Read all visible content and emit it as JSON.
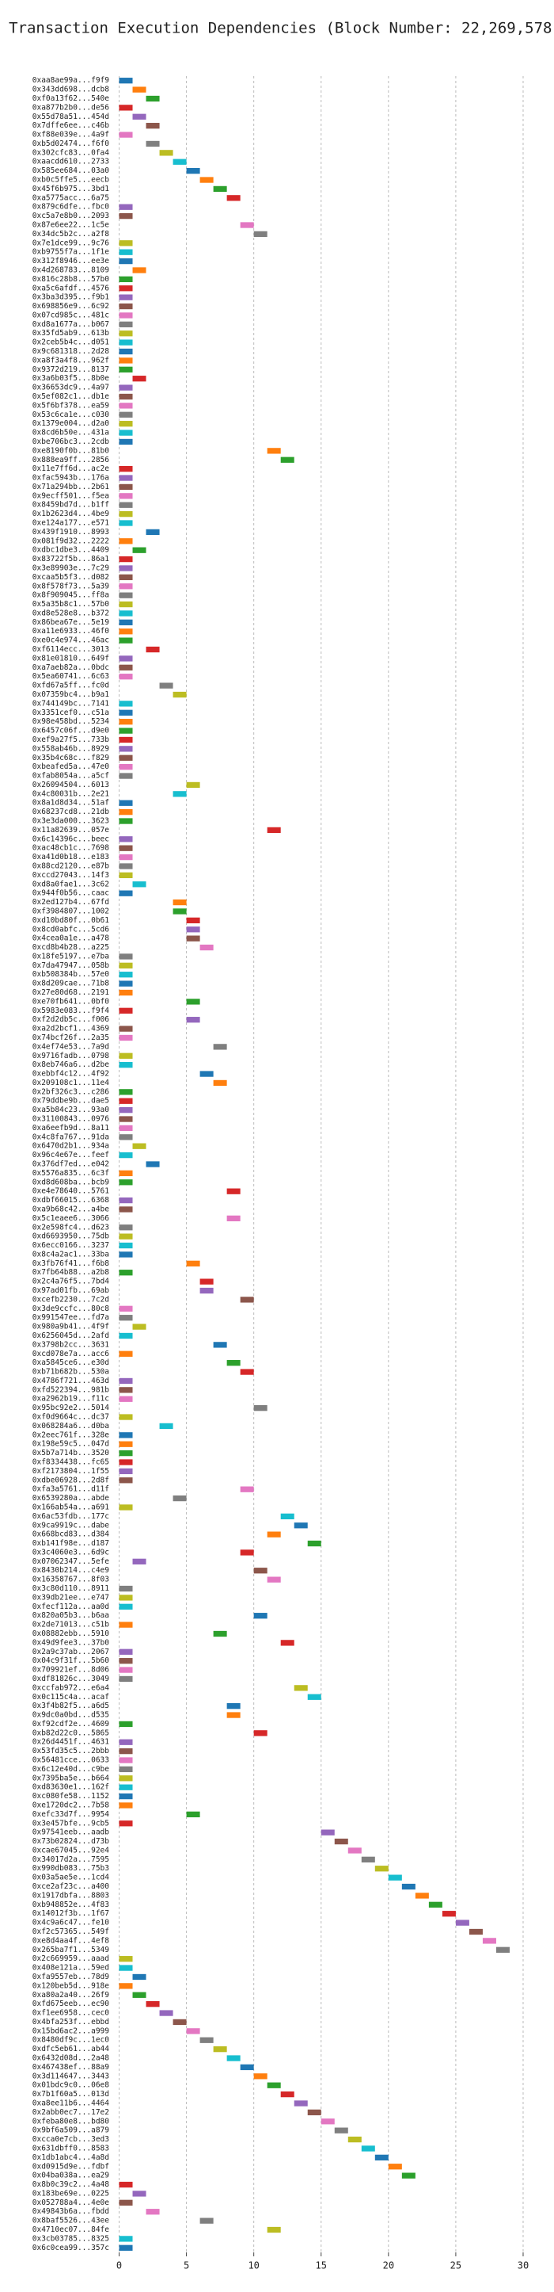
{
  "chart_data": {
    "type": "timeline",
    "title": "Transaction Execution Dependencies (Block Number: 22,269,578)",
    "categories": [
      "0xaa8ae99a...f9f9",
      "0x343dd698...dcb8",
      "0xf0a13f62...540e",
      "0xa877b2b0...de56",
      "0x55d78a51...454d",
      "0x7dffe6ee...c46b",
      "0xf88e039e...4a9f",
      "0xb5d02474...f6f0",
      "0x302cfc83...0fa4",
      "0xaacdd610...2733",
      "0x585ee684...03a0",
      "0xb0c5ffe5...eecb",
      "0x45f6b975...3bd1",
      "0xa5775acc...6a75",
      "0x879c6dfe...fbc0",
      "0xc5a7e8b0...2093",
      "0x87e6ee22...1c5e",
      "0x34dc5b2c...a2f8",
      "0x7e1dce99...9c76",
      "0xb9755f7a...1f1e",
      "0x312f8946...ee3e",
      "0x4d268783...8109",
      "0x816c28b8...57b0",
      "0xa5c6afdf...4576",
      "0x3ba3d395...f9b1",
      "0x698856e9...6c92",
      "0x07cd985c...481c",
      "0xd8a1677a...b067",
      "0x35fd5ab9...613b",
      "0x2ceb5b4c...d051",
      "0x9c681318...2d28",
      "0xa8f3a4f8...962f",
      "0x9372d219...8137",
      "0x3a6b03f5...8b0e",
      "0x36653dc9...4a97",
      "0x5ef082c1...db1e",
      "0x5f6bf378...ea59",
      "0x53c6ca1e...c030",
      "0x1379e004...d2a0",
      "0x8cd6b50e...431a",
      "0xbe706bc3...2cdb",
      "0xe8190f0b...81b0",
      "0x888ea9ff...2856",
      "0x11e7ff6d...ac2e",
      "0xfac5943b...176a",
      "0x71a294bb...2b61",
      "0x9ecff501...f5ea",
      "0x8459bd7d...b1ff",
      "0x1b2623d4...4be9",
      "0xe124a177...e571",
      "0x439f1910...8993",
      "0x081f9d32...2222",
      "0xdbc1dbe3...4409",
      "0x83722f5b...86a1",
      "0x3e89903e...7c29",
      "0xcaa5b5f3...d082",
      "0x8f578f73...5a39",
      "0x8f909045...ff8a",
      "0x5a35b8c1...57b0",
      "0xd8e528e8...b372",
      "0x86bea67e...5e19",
      "0xa11e6933...46f0",
      "0xe0c4e974...46ac",
      "0xf6114ecc...3013",
      "0x81e01810...649f",
      "0xa7aeb82a...0bdc",
      "0x5ea60741...6c63",
      "0xfd67a5ff...fc0d",
      "0x07359bc4...b9a1",
      "0x744149bc...7141",
      "0x3351cef0...c51a",
      "0x98e458bd...5234",
      "0x6457c06f...d9e0",
      "0xef9a27f5...733b",
      "0x558ab46b...8929",
      "0x35b4c68c...f829",
      "0xbeafed5a...47e0",
      "0xfab8054a...a5cf",
      "0x26094504...6013",
      "0x4c80031b...2e21",
      "0x8a1d8d34...51af",
      "0x68237cd8...21db",
      "0x3e3da000...3623",
      "0x11a82639...057e",
      "0x6c14396c...beec",
      "0xac48cb1c...7698",
      "0xa41d0b18...e183",
      "0x88cd2120...e87b",
      "0xccd27043...14f3",
      "0xd8a0fae1...3c62",
      "0x944f0b56...caac",
      "0x2ed127b4...67fd",
      "0xf3984807...1002",
      "0xd10bd80f...0b61",
      "0x8cd0abfc...5cd6",
      "0x4cea0a1e...a478",
      "0xcd8b4b28...a225",
      "0x18fe5197...e7ba",
      "0x7da47947...058b",
      "0xb508384b...57e0",
      "0x8d209cae...71b8",
      "0x27e80d68...2191",
      "0xe70fb641...0bf0",
      "0x5983e083...f9f4",
      "0xf2d2db5c...f006",
      "0xa2d2bcf1...4369",
      "0x74bcf26f...2a35",
      "0x4ef74e53...7a9d",
      "0x9716fadb...0798",
      "0x8eb746a6...d2be",
      "0xebbf4c12...4f92",
      "0x209108c1...11e4",
      "0x2bf326c3...c286",
      "0x79ddbe9b...dae5",
      "0xa5b84c23...93a0",
      "0x31100843...0976",
      "0xa6eefb9d...8a11",
      "0x4c8fa767...91da",
      "0x6470d2b1...934a",
      "0x96c4e67e...feef",
      "0x376df7ed...e042",
      "0x5576a835...6c3f",
      "0xd8d608ba...bcb9",
      "0xe4e78640...5761",
      "0xdbf66015...6368",
      "0xa9b68c42...a4be",
      "0x5c1eaee6...3066",
      "0x2e598fc4...d623",
      "0xd6693950...75db",
      "0x6ecc0166...3237",
      "0x8c4a2ac1...33ba",
      "0x3fb76f41...f6b8",
      "0x7fb64b88...a2b8",
      "0x2c4a76f5...7bd4",
      "0x97ad01fb...69ab",
      "0xcefb2230...7c2d",
      "0x3de9ccfc...80c8",
      "0x991547ee...fd7a",
      "0x980a9b41...4f9f",
      "0x6256045d...2afd",
      "0x3798b2cc...3631",
      "0xcd078e7a...acc6",
      "0xa5845ce6...e30d",
      "0xb71b682b...530a",
      "0x4786f721...463d",
      "0xfd522394...981b",
      "0xa2962b19...f11c",
      "0x95bc92e2...5014",
      "0xf0d9664c...dc37",
      "0x068284a6...d0ba",
      "0x2eec761f...328e",
      "0x198e59c5...047d",
      "0x5b7a714b...3520",
      "0xf8334438...fc65",
      "0xf2173804...1f55",
      "0xdbe06928...2d8f",
      "0xfa3a5761...d11f",
      "0x6539280a...abde",
      "0x166ab54a...a691",
      "0x6ac53fdb...177c",
      "0x9ca9919c...dabe",
      "0x668bcd83...d384",
      "0xb141f98e...d187",
      "0x3c4060e3...6d9c",
      "0x07062347...5efe",
      "0x8430b214...c4e9",
      "0x16358767...8f03",
      "0x3c80d110...8911",
      "0x39db21ee...e747",
      "0xfecf112a...aa0d",
      "0x820a05b3...b6aa",
      "0x2de71013...c51b",
      "0x08882ebb...5910",
      "0x49d9fee3...37b0",
      "0x2a9c37ab...2067",
      "0x04c9f31f...5b60",
      "0x709921ef...8d06",
      "0xdf81826c...3049",
      "0xccfab972...e6a4",
      "0x0c115c4a...acaf",
      "0x3f4b82f5...a6d5",
      "0x9dc0a0bd...d535",
      "0xf92cdf2e...4609",
      "0xb82d22c0...5865",
      "0x26d4451f...4631",
      "0x53fd35c5...2bbb",
      "0x56481cce...0633",
      "0x6c12e40d...c9be",
      "0x7395ba5e...b664",
      "0xd83630e1...162f",
      "0xc080fe58...1152",
      "0xe1720dc2...7b58",
      "0xefc33d7f...9954",
      "0x3e457bfe...9cb5",
      "0x97541eeb...aadb",
      "0x73b02824...d73b",
      "0xcae67045...92e4",
      "0x34017d2a...7595",
      "0x990db083...75b3",
      "0x03a5ae5e...1cd4",
      "0xce2af23c...a400",
      "0x1917dbfa...8803",
      "0xb948852e...4f83",
      "0x14012f3b...1f67",
      "0x4c9a6c47...fe10",
      "0xf2c57365...549f",
      "0xe8d4aa4f...4ef8",
      "0x265ba7f1...5349",
      "0x2c669959...aaad",
      "0x408e121a...59ed",
      "0xfa9557eb...78d9",
      "0x120beb5d...918e",
      "0xa80a2a40...26f9",
      "0xfd675eeb...ec90",
      "0xf1ee6958...cec0",
      "0x4bfa253f...ebbd",
      "0x15bd6ac2...a999",
      "0x8480df9c...1ec0",
      "0xdfc5eb61...ab44",
      "0x6432d08d...2a48",
      "0x467438ef...88a9",
      "0x3d114647...3443",
      "0x01bdc9c0...06e8",
      "0x7b1f60a5...013d",
      "0xa8ee11b6...4464",
      "0x2abb0ec7...17e2",
      "0xfeba80e8...bd80",
      "0x9bf6a509...a879",
      "0xcca0e7cb...3ed3",
      "0x631dbff0...8583",
      "0x1db1abc4...4a8d",
      "0xd0915d9e...fdbf",
      "0x04ba038a...ea29",
      "0x8b0c39c2...4a48",
      "0x183be69e...0225",
      "0x052788a4...4e0e",
      "0x49843b6a...fbdd",
      "0x8baf5526...43ee",
      "0x4710ec07...84fe",
      "0x3cb03785...8325",
      "0x6c0cea99...357c"
    ],
    "values": [
      0,
      1,
      2,
      0,
      1,
      2,
      0,
      2,
      3,
      4,
      5,
      6,
      7,
      8,
      0,
      0,
      9,
      10,
      0,
      0,
      0,
      1,
      0,
      0,
      0,
      0,
      0,
      0,
      0,
      0,
      0,
      0,
      0,
      1,
      0,
      0,
      0,
      0,
      0,
      0,
      0,
      11,
      12,
      0,
      0,
      0,
      0,
      0,
      0,
      0,
      2,
      0,
      1,
      0,
      0,
      0,
      0,
      0,
      0,
      0,
      0,
      0,
      0,
      2,
      0,
      0,
      0,
      3,
      4,
      0,
      0,
      0,
      0,
      0,
      0,
      0,
      0,
      0,
      5,
      4,
      0,
      0,
      0,
      11,
      0,
      0,
      0,
      0,
      0,
      1,
      0,
      4,
      4,
      5,
      5,
      5,
      6,
      0,
      0,
      0,
      0,
      0,
      5,
      0,
      5,
      0,
      0,
      7,
      0,
      0,
      6,
      7,
      0,
      0,
      0,
      0,
      0,
      0,
      1,
      0,
      2,
      0,
      0,
      8,
      0,
      0,
      8,
      0,
      0,
      0,
      0,
      5,
      0,
      6,
      6,
      9,
      0,
      0,
      1,
      0,
      7,
      0,
      8,
      9,
      0,
      0,
      0,
      10,
      0,
      3,
      0,
      0,
      0,
      0,
      0,
      0,
      9,
      4,
      0,
      12,
      13,
      11,
      14,
      9,
      1,
      10,
      11,
      0,
      0,
      0,
      10,
      0,
      7,
      12,
      0,
      0,
      0,
      0,
      13,
      14,
      8,
      8,
      0,
      10,
      0,
      0,
      0,
      0,
      0,
      0,
      0,
      0,
      5,
      0,
      15,
      16,
      17,
      18,
      19,
      20,
      21,
      22,
      23,
      24,
      25,
      26,
      27,
      28,
      0,
      0,
      1,
      0,
      1,
      2,
      3,
      4,
      5,
      6,
      7,
      8,
      9,
      10,
      11,
      12,
      13,
      14,
      15,
      16,
      17,
      18,
      19,
      20,
      21,
      0,
      1,
      0,
      2,
      6,
      11,
      0,
      0
    ],
    "bar_width": 1,
    "colors": [
      "#1f77b4",
      "#ff7f0e",
      "#2ca02c",
      "#d62728",
      "#9467bd",
      "#8c564b",
      "#e377c2",
      "#7f7f7f",
      "#bcbd22",
      "#17becf"
    ],
    "xlim": [
      -0.5,
      31
    ],
    "xticks": [
      0,
      5,
      10,
      15,
      20,
      25,
      30
    ],
    "grid": true
  }
}
